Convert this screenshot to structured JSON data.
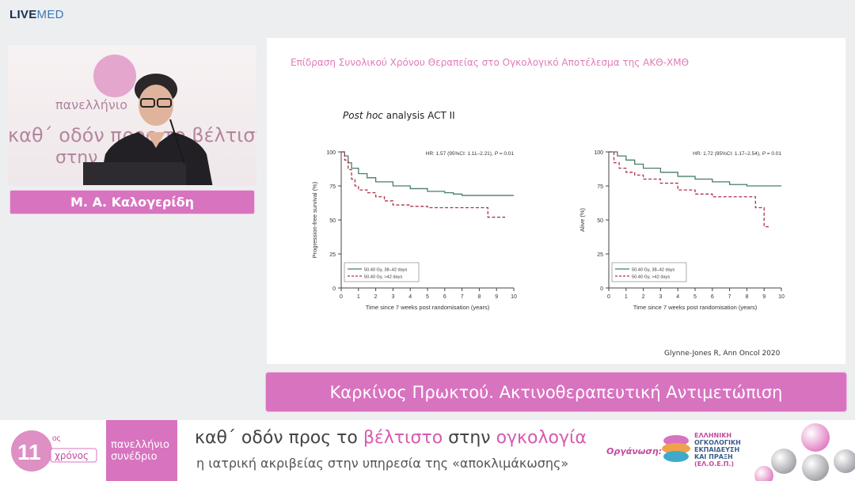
{
  "brand": {
    "live": "LIVE",
    "med": "MED"
  },
  "speaker": {
    "name": "Μ. Α. Καλογερίδη"
  },
  "video_bg": {
    "line1": "πανελλήνιο",
    "line2": "καθ΄ οδόν προς το βέλτιστο",
    "line3": "στην"
  },
  "slide": {
    "title": "Επίδραση Συνολικού Χρόνου Θεραπείας στο Ογκολογικό Αποτέλεσμα της ΑΚΘ-ΧΜΘ",
    "subtitle_italic": "Post hoc",
    "subtitle_rest": " analysis ACT II",
    "citation": "Glynne-Jones R, Ann Oncol 2020"
  },
  "topic": "Καρκίνος Πρωκτού. Ακτινοθεραπευτική Αντιμετώπιση",
  "footer": {
    "logo_num": "11",
    "logo_sup": "ος",
    "logo_word": "χρόνος",
    "pink_line1": "πανελλήνιο",
    "pink_line2": "συνέδριο",
    "tag_a": "καθ΄ οδόν προς το ",
    "tag_b": "βέλτιστο",
    "tag_c": " στην ",
    "tag_d": "ογκολογία",
    "tag2": "η ιατρική ακριβείας στην υπηρεσία της «αποκλιμάκωσης»",
    "org_label": "Οργάνωση:",
    "org_l1": "ΕΛΛΗΝΙΚΗ",
    "org_l2": "ΟΓΚΟΛΟΓΙΚΗ",
    "org_l3": "ΕΚΠΑΙΔΕΥΣΗ",
    "org_l4": "ΚΑΙ ΠΡΑΞΗ",
    "org_l5": "(ΕΛ.Ο.Ε.Π.)"
  },
  "colors": {
    "solid_line": "#4a7d66",
    "dashed_line": "#b0324a",
    "accent_pink": "#d873bf"
  },
  "chart_data": [
    {
      "type": "line",
      "hr_text": "HR: 1.57 (95%CI: 1.11–2.21), ",
      "p_text": "P",
      "p_value": " = 0.01",
      "xlabel": "Time since 7 weeks post randomisation (years)",
      "ylabel": "Progression-free survival (%)",
      "xlim": [
        0,
        10
      ],
      "ylim": [
        0,
        100
      ],
      "xticks": [
        "0",
        "1",
        "2",
        "3",
        "4",
        "5",
        "6",
        "7",
        "8",
        "9",
        "10"
      ],
      "yticks": [
        "0",
        "25",
        "50",
        "75",
        "100"
      ],
      "legend_position": "bottom-left",
      "series": [
        {
          "name": "50.40 Gy, 38–42 days",
          "style": "solid",
          "x": [
            0,
            0.2,
            0.4,
            0.6,
            1,
            1.5,
            2,
            3,
            4,
            5,
            6,
            6.5,
            7,
            8,
            9,
            10
          ],
          "y": [
            100,
            97,
            92,
            88,
            84,
            81,
            78,
            75,
            73,
            71,
            70,
            69,
            68,
            68,
            68,
            68
          ]
        },
        {
          "name": "50.40 Gy, >42 days",
          "style": "dashed",
          "x": [
            0,
            0.2,
            0.4,
            0.6,
            0.8,
            1,
            1.5,
            2,
            2.5,
            3,
            4,
            5,
            6,
            7,
            8,
            8.5,
            9,
            9.5
          ],
          "y": [
            100,
            94,
            87,
            80,
            75,
            72,
            70,
            67,
            64,
            61,
            60,
            59,
            59,
            59,
            59,
            52,
            52,
            52
          ]
        }
      ]
    },
    {
      "type": "line",
      "hr_text": "HR: 1.72 (95%CI: 1.17–2.54), ",
      "p_text": "P",
      "p_value": " = 0.01",
      "xlabel": "Time since 7 weeks post randomisation (years)",
      "ylabel": "Alive (%)",
      "xlim": [
        0,
        10
      ],
      "ylim": [
        0,
        100
      ],
      "xticks": [
        "0",
        "1",
        "2",
        "3",
        "4",
        "5",
        "6",
        "7",
        "8",
        "9",
        "10"
      ],
      "yticks": [
        "0",
        "25",
        "50",
        "75",
        "100"
      ],
      "legend_position": "bottom-left",
      "series": [
        {
          "name": "50.40 Gy, 38–42 days",
          "style": "solid",
          "x": [
            0,
            0.5,
            1,
            1.5,
            2,
            3,
            4,
            5,
            6,
            7,
            8,
            9,
            10
          ],
          "y": [
            100,
            97,
            94,
            91,
            88,
            85,
            82,
            80,
            78,
            76,
            75,
            75,
            75
          ]
        },
        {
          "name": "50.40 Gy, >42 days",
          "style": "dashed",
          "x": [
            0,
            0.3,
            0.6,
            1,
            1.5,
            2,
            3,
            4,
            5,
            6,
            7,
            8,
            8.5,
            9,
            9.3
          ],
          "y": [
            100,
            92,
            88,
            85,
            83,
            80,
            77,
            72,
            69,
            67,
            67,
            67,
            59,
            45,
            45
          ]
        }
      ]
    }
  ]
}
